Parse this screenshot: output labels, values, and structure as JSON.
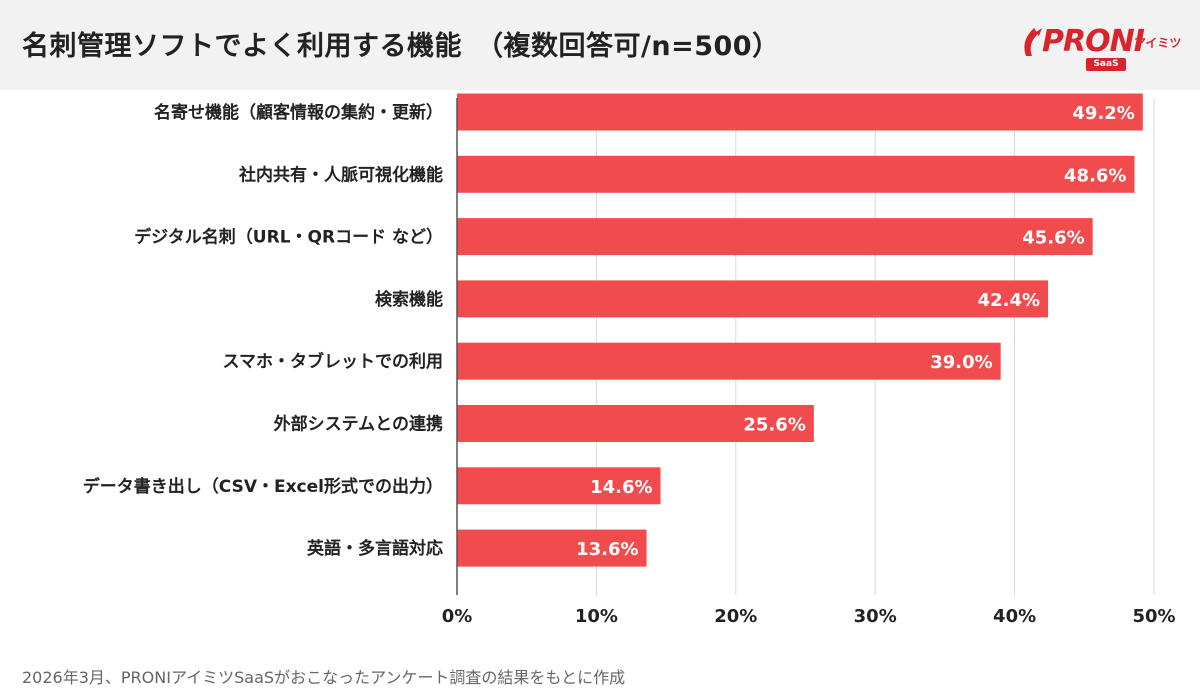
{
  "header": {
    "title": "名刺管理ソフトでよく利用する機能　（複数回答可/n=500）"
  },
  "logo": {
    "brand": "PRONI",
    "kana": "アイミツ",
    "tag": "SaaS"
  },
  "colors": {
    "bar": "#f24b4e",
    "brand": "#d8242c",
    "grid": "#d9d9d9",
    "header_bg": "#f2f2f2"
  },
  "chart_data": {
    "type": "bar",
    "orientation": "horizontal",
    "categories": [
      "名寄せ機能（顧客情報の集約・更新）",
      "社内共有・人脈可視化機能",
      "デジタル名刺（URL・QRコード など）",
      "検索機能",
      "スマホ・タブレットでの利用",
      "外部システムとの連携",
      "データ書き出し（CSV・Excel形式での出力）",
      "英語・多言語対応"
    ],
    "values": [
      49.2,
      48.6,
      45.6,
      42.4,
      39.0,
      25.6,
      14.6,
      13.6
    ],
    "value_labels": [
      "49.2%",
      "48.6%",
      "45.6%",
      "42.4%",
      "39.0%",
      "25.6%",
      "14.6%",
      "13.6%"
    ],
    "xlim": [
      0,
      50
    ],
    "xticks": [
      0,
      10,
      20,
      30,
      40,
      50
    ],
    "xtick_labels": [
      "0%",
      "10%",
      "20%",
      "30%",
      "40%",
      "50%"
    ],
    "grid": true,
    "title": "名刺管理ソフトでよく利用する機能　（複数回答可/n=500）"
  },
  "footer": {
    "note": "2026年3月、PRONIアイミツSaaSがおこなったアンケート調査の結果をもとに作成"
  }
}
